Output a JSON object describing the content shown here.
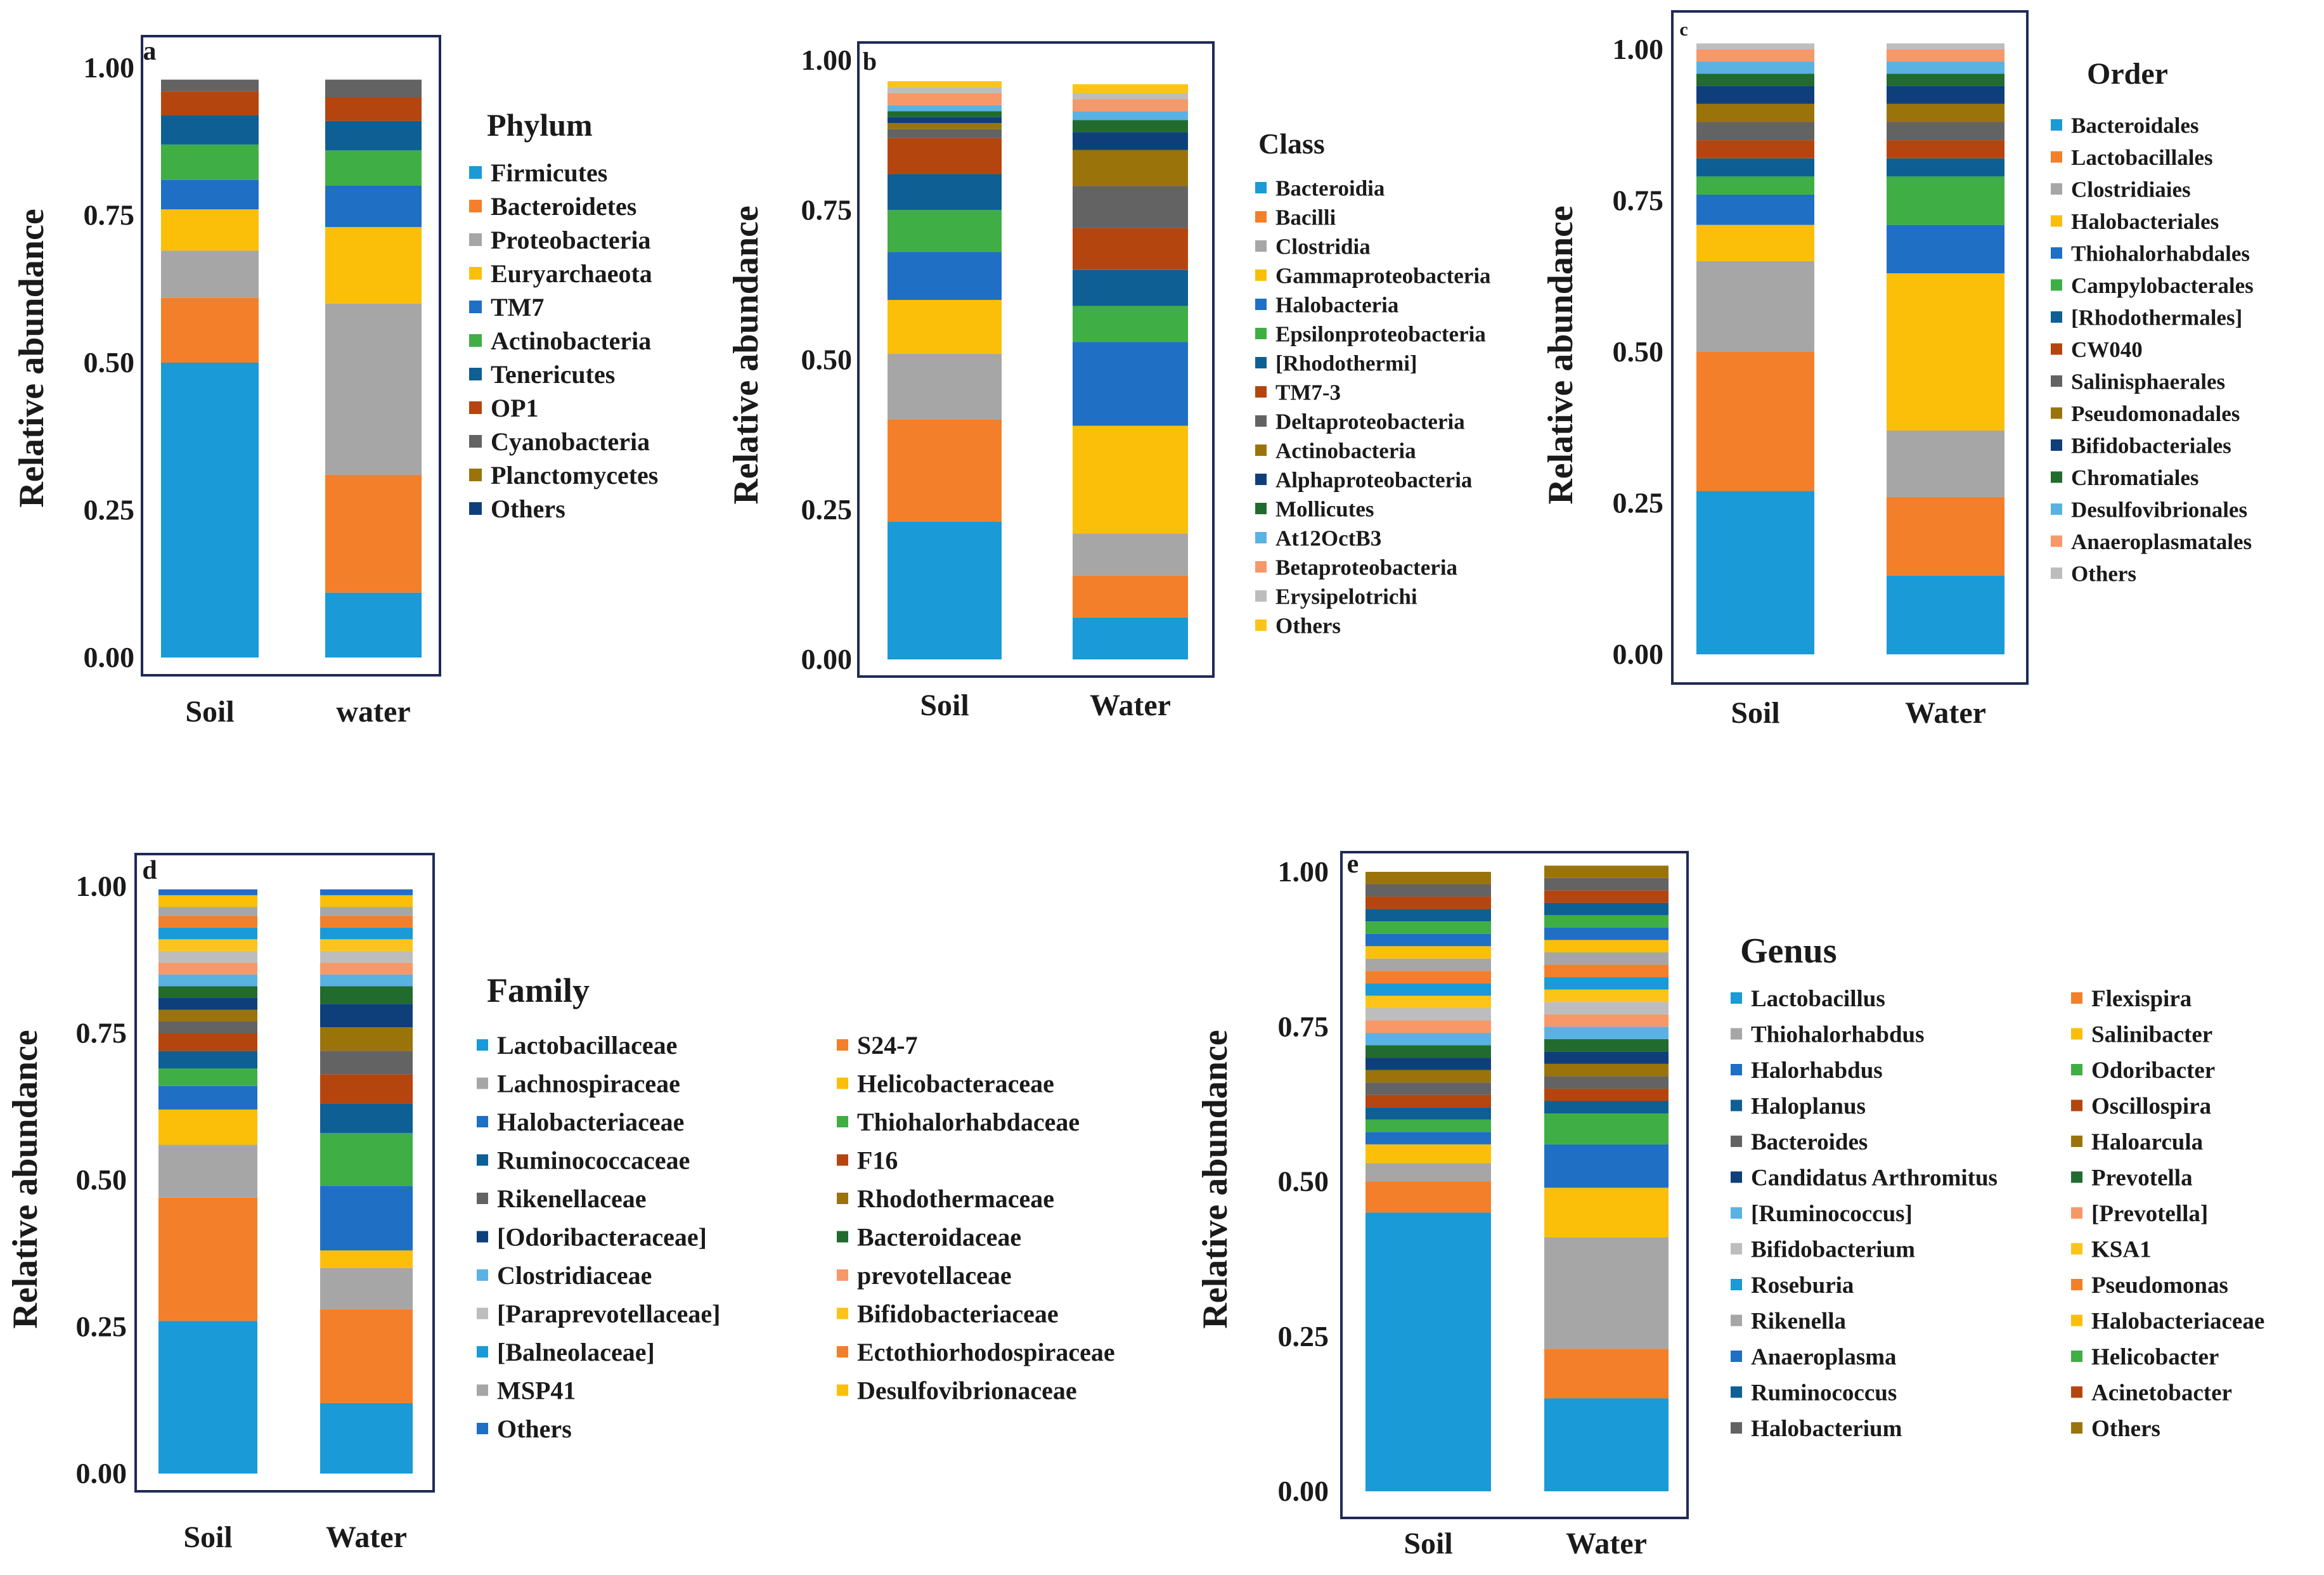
{
  "colors": {
    "frame": "#1f2a55",
    "palette": [
      "#1a9ad6",
      "#f47f2a",
      "#a6a6a6",
      "#fbbf0a",
      "#1f6fc5",
      "#3fae45",
      "#0e5f94",
      "#b5450f",
      "#636363",
      "#9a740b",
      "#0f3f7a",
      "#216b2f",
      "#5ab2e3",
      "#f79868",
      "#bdbdbd",
      "#fcc419"
    ]
  },
  "chart_data": [
    {
      "id": "a",
      "type": "stacked_bar",
      "panel_label": "a",
      "ylabel": "Relative abundance",
      "ylim": [
        0,
        1
      ],
      "ticks": [
        "0.00",
        "0.25",
        "0.50",
        "0.75",
        "1.00"
      ],
      "categories": [
        "Soil",
        "water"
      ],
      "legend_title": "Phylum",
      "series": [
        {
          "name": "Firmicutes",
          "values": [
            0.5,
            0.11
          ]
        },
        {
          "name": "Bacteroidetes",
          "values": [
            0.11,
            0.2
          ]
        },
        {
          "name": "Proteobacteria",
          "values": [
            0.08,
            0.29
          ]
        },
        {
          "name": "Euryarchaeota",
          "values": [
            0.07,
            0.13
          ]
        },
        {
          "name": "TM7",
          "values": [
            0.05,
            0.07
          ]
        },
        {
          "name": "Actinobacteria",
          "values": [
            0.06,
            0.06
          ]
        },
        {
          "name": "Tenericutes",
          "values": [
            0.05,
            0.05
          ]
        },
        {
          "name": "OP1",
          "values": [
            0.04,
            0.04
          ]
        },
        {
          "name": "Cyanobacteria",
          "values": [
            0.02,
            0.03
          ]
        },
        {
          "name": "Planctomycetes",
          "values": [
            0.0,
            0.0
          ]
        },
        {
          "name": "Others",
          "values": [
            0.0,
            0.0
          ]
        }
      ]
    },
    {
      "id": "b",
      "type": "stacked_bar",
      "panel_label": "b",
      "ylabel": "Relative abundance",
      "ylim": [
        0,
        1
      ],
      "ticks": [
        "0.00",
        "0.25",
        "0.50",
        "0.75",
        "1.00"
      ],
      "categories": [
        "Soil",
        "Water"
      ],
      "legend_title": "Class",
      "series": [
        {
          "name": "Bacteroidia",
          "values": [
            0.23,
            0.07
          ]
        },
        {
          "name": "Bacilli",
          "values": [
            0.17,
            0.07
          ]
        },
        {
          "name": "Clostridia",
          "values": [
            0.11,
            0.07
          ]
        },
        {
          "name": "Gammaproteobacteria",
          "values": [
            0.09,
            0.18
          ]
        },
        {
          "name": "Halobacteria",
          "values": [
            0.08,
            0.14
          ]
        },
        {
          "name": "Epsilonproteobacteria",
          "values": [
            0.07,
            0.06
          ]
        },
        {
          "name": "[Rhodothermi]",
          "values": [
            0.06,
            0.06
          ]
        },
        {
          "name": "TM7-3",
          "values": [
            0.06,
            0.07
          ]
        },
        {
          "name": "Deltaproteobacteria",
          "values": [
            0.015,
            0.07
          ]
        },
        {
          "name": "Actinobacteria",
          "values": [
            0.01,
            0.06
          ]
        },
        {
          "name": "Alphaproteobacteria",
          "values": [
            0.01,
            0.03
          ]
        },
        {
          "name": "Mollicutes",
          "values": [
            0.01,
            0.02
          ]
        },
        {
          "name": "At12OctB3",
          "values": [
            0.01,
            0.015
          ]
        },
        {
          "name": "Betaproteobacteria",
          "values": [
            0.02,
            0.02
          ]
        },
        {
          "name": "Erysipelotrichi",
          "values": [
            0.01,
            0.01
          ]
        },
        {
          "name": "Others",
          "values": [
            0.01,
            0.015
          ]
        }
      ]
    },
    {
      "id": "c",
      "type": "stacked_bar",
      "panel_label": "c",
      "ylabel": "Relative abundance",
      "ylim": [
        0,
        1
      ],
      "ticks": [
        "0.00",
        "0.25",
        "0.50",
        "0.75",
        "1.00"
      ],
      "categories": [
        "Soil",
        "Water"
      ],
      "legend_title": "Order",
      "series": [
        {
          "name": "Bacteroidales",
          "values": [
            0.27,
            0.13
          ]
        },
        {
          "name": "Lactobacillales",
          "values": [
            0.23,
            0.13
          ]
        },
        {
          "name": "Clostridiaies",
          "values": [
            0.15,
            0.11
          ]
        },
        {
          "name": "Halobacteriales",
          "values": [
            0.06,
            0.26
          ]
        },
        {
          "name": "Thiohalorhabdales",
          "values": [
            0.05,
            0.08
          ]
        },
        {
          "name": "Campylobacterales",
          "values": [
            0.03,
            0.08
          ]
        },
        {
          "name": "[Rhodothermales]",
          "values": [
            0.03,
            0.03
          ]
        },
        {
          "name": "CW040",
          "values": [
            0.03,
            0.03
          ]
        },
        {
          "name": "Salinisphaerales",
          "values": [
            0.03,
            0.03
          ]
        },
        {
          "name": "Pseudomonadales",
          "values": [
            0.03,
            0.03
          ]
        },
        {
          "name": "Bifidobacteriales",
          "values": [
            0.03,
            0.03
          ]
        },
        {
          "name": "Chromatiales",
          "values": [
            0.02,
            0.02
          ]
        },
        {
          "name": "Desulfovibrionales",
          "values": [
            0.02,
            0.02
          ]
        },
        {
          "name": "Anaeroplasmatales",
          "values": [
            0.02,
            0.02
          ]
        },
        {
          "name": "Others",
          "values": [
            0.01,
            0.01
          ]
        }
      ]
    },
    {
      "id": "d",
      "type": "stacked_bar",
      "panel_label": "d",
      "ylabel": "Relative abundance",
      "ylim": [
        0,
        1
      ],
      "ticks": [
        "0.00",
        "0.25",
        "0.50",
        "0.75",
        "1.00"
      ],
      "categories": [
        "Soil",
        "Water"
      ],
      "legend_title": "Family",
      "series": [
        {
          "name": "Lactobacillaceae",
          "values": [
            0.26,
            0.12
          ]
        },
        {
          "name": "S24-7",
          "values": [
            0.21,
            0.16
          ]
        },
        {
          "name": "Lachnospiraceae",
          "values": [
            0.09,
            0.07
          ]
        },
        {
          "name": "Helicobacteraceae",
          "values": [
            0.06,
            0.03
          ]
        },
        {
          "name": "Halobacteriaceae",
          "values": [
            0.04,
            0.11
          ]
        },
        {
          "name": "Thiohalorhabdaceae",
          "values": [
            0.03,
            0.09
          ]
        },
        {
          "name": "Ruminococcaceae",
          "values": [
            0.03,
            0.05
          ]
        },
        {
          "name": "F16",
          "values": [
            0.03,
            0.05
          ]
        },
        {
          "name": "Rikenellaceae",
          "values": [
            0.02,
            0.04
          ]
        },
        {
          "name": "Rhodothermaceae",
          "values": [
            0.02,
            0.04
          ]
        },
        {
          "name": "[Odoribacteraceae]",
          "values": [
            0.02,
            0.04
          ]
        },
        {
          "name": "Bacteroidaceae",
          "values": [
            0.02,
            0.03
          ]
        },
        {
          "name": "Clostridiaceae",
          "values": [
            0.02,
            0.02
          ]
        },
        {
          "name": "prevotellaceae",
          "values": [
            0.02,
            0.02
          ]
        },
        {
          "name": "[Paraprevotellaceae]",
          "values": [
            0.02,
            0.02
          ]
        },
        {
          "name": "Bifidobacteriaceae",
          "values": [
            0.02,
            0.02
          ]
        },
        {
          "name": "[Balneolaceae]",
          "values": [
            0.02,
            0.02
          ]
        },
        {
          "name": "Ectothiorhodospiraceae",
          "values": [
            0.02,
            0.02
          ]
        },
        {
          "name": "MSP41",
          "values": [
            0.015,
            0.015
          ]
        },
        {
          "name": "Desulfovibrionaceae",
          "values": [
            0.02,
            0.02
          ]
        },
        {
          "name": "Others",
          "values": [
            0.01,
            0.01
          ]
        }
      ]
    },
    {
      "id": "e",
      "type": "stacked_bar",
      "panel_label": "e",
      "ylabel": "Relative abundance",
      "ylim": [
        0,
        1
      ],
      "ticks": [
        "0.00",
        "0.25",
        "0.50",
        "0.75",
        "1.00"
      ],
      "categories": [
        "Soil",
        "Water"
      ],
      "legend_title": "Genus",
      "series": [
        {
          "name": "Lactobacillus",
          "values": [
            0.45,
            0.15
          ]
        },
        {
          "name": "Flexispira",
          "values": [
            0.05,
            0.08
          ]
        },
        {
          "name": "Thiohalorhabdus",
          "values": [
            0.03,
            0.18
          ]
        },
        {
          "name": "Salinibacter",
          "values": [
            0.03,
            0.08
          ]
        },
        {
          "name": "Halorhabdus",
          "values": [
            0.02,
            0.07
          ]
        },
        {
          "name": "Odoribacter",
          "values": [
            0.02,
            0.05
          ]
        },
        {
          "name": "Haloplanus",
          "values": [
            0.02,
            0.02
          ]
        },
        {
          "name": "Oscillospira",
          "values": [
            0.02,
            0.02
          ]
        },
        {
          "name": "Bacteroides",
          "values": [
            0.02,
            0.02
          ]
        },
        {
          "name": "Haloarcula",
          "values": [
            0.02,
            0.02
          ]
        },
        {
          "name": "Candidatus Arthromitus",
          "values": [
            0.02,
            0.02
          ]
        },
        {
          "name": "Prevotella",
          "values": [
            0.02,
            0.02
          ]
        },
        {
          "name": "[Ruminococcus]",
          "values": [
            0.02,
            0.02
          ]
        },
        {
          "name": "[Prevotella]",
          "values": [
            0.02,
            0.02
          ]
        },
        {
          "name": "Bifidobacterium",
          "values": [
            0.02,
            0.02
          ]
        },
        {
          "name": "KSA1",
          "values": [
            0.02,
            0.02
          ]
        },
        {
          "name": "Roseburia",
          "values": [
            0.02,
            0.02
          ]
        },
        {
          "name": "Pseudomonas",
          "values": [
            0.02,
            0.02
          ]
        },
        {
          "name": "Rikenella",
          "values": [
            0.02,
            0.02
          ]
        },
        {
          "name": "Halobacteriaceae",
          "values": [
            0.02,
            0.02
          ]
        },
        {
          "name": "Anaeroplasma",
          "values": [
            0.02,
            0.02
          ]
        },
        {
          "name": "Helicobacter",
          "values": [
            0.02,
            0.02
          ]
        },
        {
          "name": "Ruminococcus",
          "values": [
            0.02,
            0.02
          ]
        },
        {
          "name": "Acinetobacter",
          "values": [
            0.02,
            0.02
          ]
        },
        {
          "name": "Halobacterium",
          "values": [
            0.02,
            0.02
          ]
        },
        {
          "name": "Others",
          "values": [
            0.02,
            0.02
          ]
        }
      ]
    }
  ]
}
